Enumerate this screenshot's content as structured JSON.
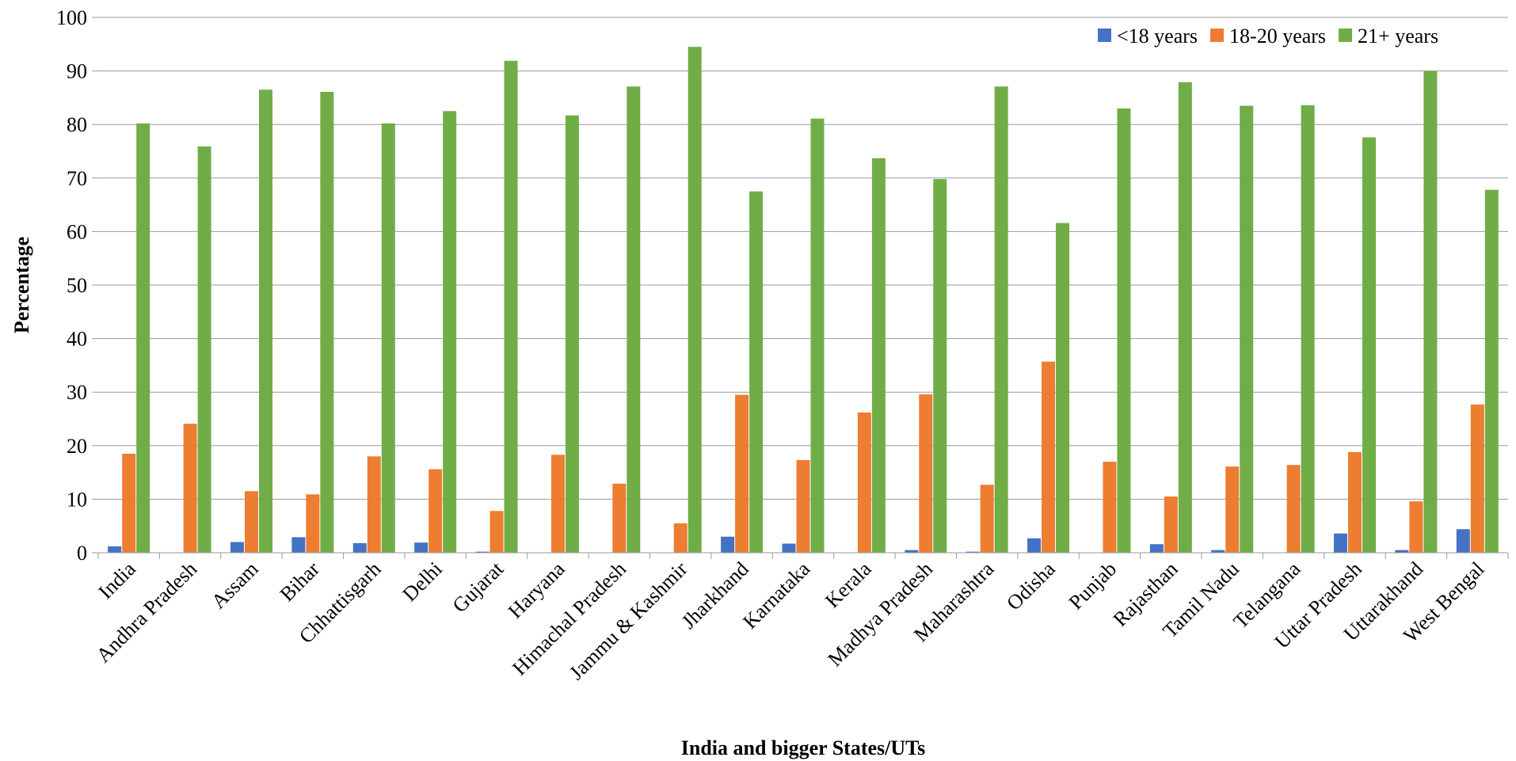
{
  "chart_data": {
    "type": "bar",
    "xlabel": "India and bigger States/UTs",
    "ylabel": "Percentage",
    "ylim": [
      0,
      100
    ],
    "yticks": [
      0,
      10,
      20,
      30,
      40,
      50,
      60,
      70,
      80,
      90,
      100
    ],
    "grid": true,
    "legend_position": "top-right",
    "categories": [
      "India",
      "Andhra Pradesh",
      "Assam",
      "Bihar",
      "Chhattisgarh",
      "Delhi",
      "Gujarat",
      "Haryana",
      "Himachal Pradesh",
      "Jammu & Kashmir",
      "Jharkhand",
      "Karnataka",
      "Kerala",
      "Madhya Pradesh",
      "Maharashtra",
      "Odisha",
      "Punjab",
      "Rajasthan",
      "Tamil Nadu",
      "Telangana",
      "Uttar Pradesh",
      "Uttarakhand",
      "West Bengal"
    ],
    "series": [
      {
        "name": "<18 years",
        "color": "#4472C4",
        "values": [
          1.2,
          0,
          2.0,
          2.9,
          1.8,
          1.9,
          0.2,
          0,
          0,
          0,
          3.0,
          1.7,
          0,
          0.5,
          0.2,
          2.7,
          0,
          1.6,
          0.5,
          0,
          3.6,
          0.5,
          4.4
        ]
      },
      {
        "name": "18-20 years",
        "color": "#ED7D31",
        "values": [
          18.5,
          24.1,
          11.5,
          10.9,
          18.0,
          15.6,
          7.8,
          18.3,
          12.9,
          5.5,
          29.5,
          17.3,
          26.2,
          29.6,
          12.7,
          35.7,
          17.0,
          10.5,
          16.1,
          16.4,
          18.8,
          9.6,
          27.7
        ]
      },
      {
        "name": "21+ years",
        "color": "#70AD47",
        "values": [
          80.2,
          75.9,
          86.5,
          86.1,
          80.2,
          82.5,
          91.9,
          81.7,
          87.1,
          94.5,
          67.5,
          81.1,
          73.7,
          69.8,
          87.1,
          61.6,
          83.0,
          87.9,
          83.5,
          83.6,
          77.6,
          90.0,
          67.8
        ]
      }
    ]
  }
}
